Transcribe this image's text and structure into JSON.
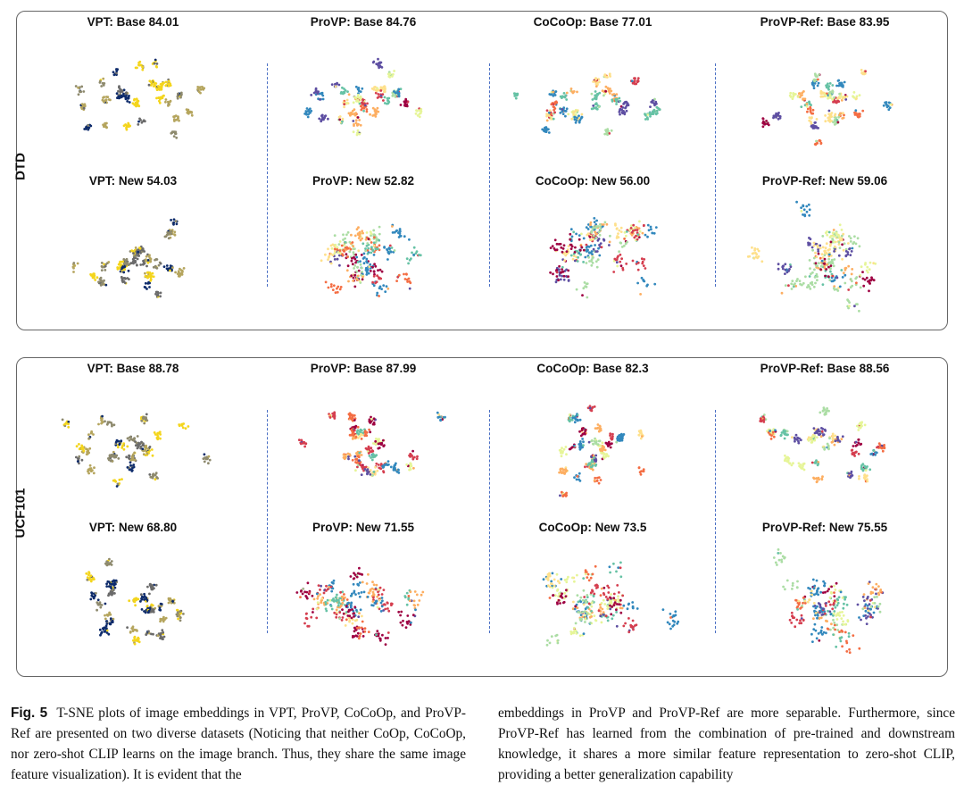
{
  "figure": {
    "panels": [
      {
        "dataset": "DTD",
        "titles": [
          [
            "VPT: Base 84.01",
            "ProVP: Base 84.76",
            "CoCoOp: Base 77.01",
            "ProVP-Ref: Base 83.95"
          ],
          [
            "VPT: New 54.03",
            "ProVP: New 52.82",
            "CoCoOp: New 56.00",
            "ProVP-Ref: New 59.06"
          ]
        ]
      },
      {
        "dataset": "UCF101",
        "titles": [
          [
            "VPT: Base 88.78",
            "ProVP: Base 87.99",
            "CoCoOp: Base 82.3",
            "ProVP-Ref: Base 88.56"
          ],
          [
            "VPT: New 68.80",
            "ProVP: New 71.55",
            "CoCoOp: New 73.5",
            "ProVP-Ref: New 75.55"
          ]
        ]
      }
    ],
    "colors": {
      "vpt_palette": [
        "#0d2b6b",
        "#6b6b6b",
        "#b5a55e",
        "#f4d51c",
        "#8e8a6e"
      ],
      "spectral_palette": [
        "#9e0142",
        "#d53e4f",
        "#f46d43",
        "#fdae61",
        "#fee08b",
        "#e6f598",
        "#abdda4",
        "#66c2a5",
        "#3288bd",
        "#5e4fa2"
      ],
      "separator": "#4a6fc4"
    }
  },
  "caption": {
    "label": "Fig. 5",
    "left": "T-SNE plots of image embeddings in VPT, ProVP, CoCoOp, and ProVP-Ref are presented on two diverse datasets (Noticing that neither CoOp, CoCoOp, nor zero-shot CLIP learns on the image branch. Thus, they share the same image feature visualization). It is evident that the",
    "right": "embeddings in ProVP and ProVP-Ref are more separable. Furthermore, since ProVP-Ref has learned from the combination of pre-trained and downstream knowledge, it shares a more similar feature representation to zero-shot CLIP, providing a better generalization capability"
  }
}
